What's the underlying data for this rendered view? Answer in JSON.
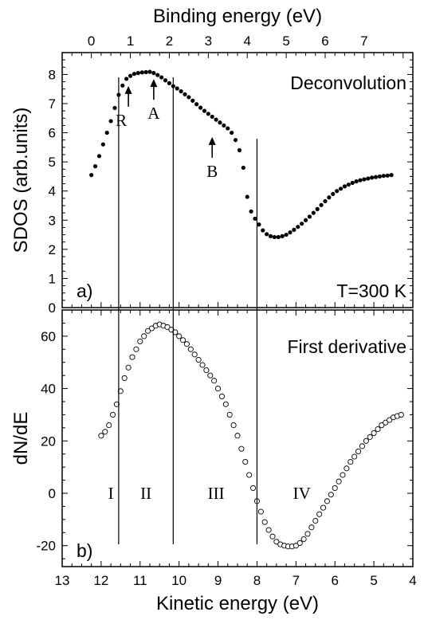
{
  "chart_data": [
    {
      "type": "scatter",
      "panel_label": "a)",
      "annotation": "Deconvolution",
      "temperature_label": "T=300 K",
      "xlabel_top": "Binding energy (eV)",
      "ylabel": "SDOS (arb.units)",
      "top_xlim": [
        -0.75,
        8.25
      ],
      "top_xticks": [
        "0",
        "1",
        "2",
        "3",
        "4",
        "5",
        "6",
        "7"
      ],
      "ylim": [
        0,
        8.75
      ],
      "yticks": [
        "0",
        "1",
        "2",
        "3",
        "4",
        "5",
        "6",
        "7",
        "8"
      ],
      "x": [
        0.0,
        0.1,
        0.2,
        0.3,
        0.4,
        0.5,
        0.6,
        0.7,
        0.8,
        0.9,
        1.0,
        1.1,
        1.2,
        1.3,
        1.4,
        1.5,
        1.6,
        1.7,
        1.8,
        1.9,
        2.0,
        2.1,
        2.2,
        2.3,
        2.4,
        2.5,
        2.6,
        2.7,
        2.8,
        2.9,
        3.0,
        3.1,
        3.2,
        3.3,
        3.4,
        3.5,
        3.6,
        3.7,
        3.8,
        3.9,
        4.0,
        4.1,
        4.2,
        4.3,
        4.4,
        4.5,
        4.6,
        4.7,
        4.8,
        4.9,
        5.0,
        5.1,
        5.2,
        5.3,
        5.4,
        5.5,
        5.6,
        5.7,
        5.8,
        5.9,
        6.0,
        6.1,
        6.2,
        6.3,
        6.4,
        6.5,
        6.6,
        6.7,
        6.8,
        6.9,
        7.0,
        7.1,
        7.2,
        7.3,
        7.4,
        7.5,
        7.6,
        7.7
      ],
      "y": [
        4.55,
        4.85,
        5.2,
        5.6,
        6.0,
        6.4,
        6.85,
        7.3,
        7.62,
        7.85,
        7.95,
        8.02,
        8.05,
        8.07,
        8.08,
        8.09,
        8.05,
        7.98,
        7.9,
        7.8,
        7.7,
        7.6,
        7.52,
        7.42,
        7.32,
        7.22,
        7.1,
        6.98,
        6.86,
        6.75,
        6.65,
        6.55,
        6.45,
        6.35,
        6.25,
        6.15,
        6.0,
        5.75,
        5.4,
        4.8,
        3.8,
        3.3,
        3.05,
        2.85,
        2.65,
        2.52,
        2.45,
        2.42,
        2.42,
        2.45,
        2.5,
        2.58,
        2.67,
        2.77,
        2.88,
        3.0,
        3.12,
        3.25,
        3.38,
        3.52,
        3.65,
        3.78,
        3.9,
        4.0,
        4.08,
        4.16,
        4.22,
        4.28,
        4.33,
        4.37,
        4.4,
        4.43,
        4.46,
        4.48,
        4.5,
        4.52,
        4.53,
        4.55
      ],
      "arrows": [
        {
          "label": "R",
          "x": 0.95,
          "y": 7.85
        },
        {
          "label": "A",
          "x": 1.6,
          "y": 8.09
        },
        {
          "label": "B",
          "x": 3.1,
          "y": 6.1
        }
      ]
    },
    {
      "type": "scatter",
      "panel_label": "b)",
      "annotation": "First derivative",
      "xlabel": "Kinetic energy (eV)",
      "ylabel": "dN/dE",
      "xlim": [
        13,
        4
      ],
      "xticks": [
        "13",
        "12",
        "11",
        "10",
        "9",
        "8",
        "7",
        "6",
        "5",
        "4"
      ],
      "ylim": [
        -28,
        70
      ],
      "yticks": [
        "-20",
        "0",
        "20",
        "40",
        "60"
      ],
      "region_labels": [
        {
          "label": "I",
          "x": 11.75
        },
        {
          "label": "II",
          "x": 10.85
        },
        {
          "label": "III",
          "x": 9.05
        },
        {
          "label": "IV",
          "x": 6.85
        }
      ],
      "x": [
        12.0,
        11.9,
        11.8,
        11.7,
        11.6,
        11.5,
        11.4,
        11.3,
        11.2,
        11.1,
        11.0,
        10.9,
        10.8,
        10.7,
        10.6,
        10.5,
        10.4,
        10.3,
        10.2,
        10.1,
        10.0,
        9.9,
        9.8,
        9.7,
        9.6,
        9.5,
        9.4,
        9.3,
        9.2,
        9.1,
        9.0,
        8.9,
        8.8,
        8.7,
        8.6,
        8.5,
        8.4,
        8.3,
        8.2,
        8.1,
        8.0,
        7.9,
        7.8,
        7.7,
        7.6,
        7.5,
        7.4,
        7.3,
        7.2,
        7.1,
        7.0,
        6.9,
        6.8,
        6.7,
        6.6,
        6.5,
        6.4,
        6.3,
        6.2,
        6.1,
        6.0,
        5.9,
        5.8,
        5.7,
        5.6,
        5.5,
        5.4,
        5.3,
        5.2,
        5.1,
        5.0,
        4.9,
        4.8,
        4.7,
        4.6,
        4.5,
        4.4,
        4.3
      ],
      "y": [
        22,
        23.5,
        26,
        30,
        34,
        39,
        44,
        48,
        52,
        55,
        58,
        60,
        62,
        63,
        64,
        64.5,
        64,
        63.5,
        62.5,
        61.5,
        60,
        58.5,
        57,
        55,
        53,
        51,
        49,
        47,
        45,
        43,
        40,
        37,
        34,
        30,
        26,
        22,
        17,
        12,
        7,
        2,
        -3,
        -7,
        -11,
        -14,
        -16.5,
        -18.5,
        -19.5,
        -20,
        -20.3,
        -20.3,
        -20,
        -19,
        -17.5,
        -15.5,
        -13,
        -10.5,
        -8,
        -5.5,
        -3,
        -0.5,
        2,
        4.5,
        7,
        9.5,
        12,
        14,
        16,
        18,
        20,
        21.5,
        23,
        24.5,
        26,
        27,
        28,
        29,
        29.5,
        30
      ],
      "vertical_lines_kinetic": [
        11.55,
        10.15,
        8.0
      ]
    }
  ]
}
